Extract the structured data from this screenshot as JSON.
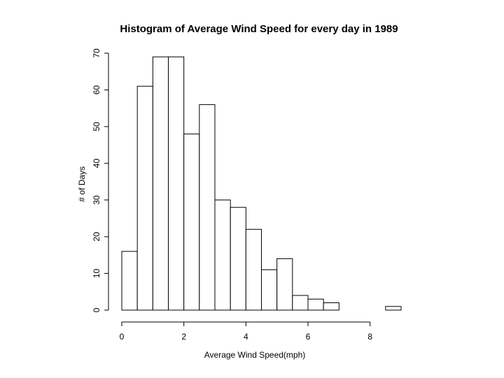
{
  "chart_data": {
    "type": "bar",
    "title": "Histogram of Average Wind Speed for every day in 1989",
    "xlabel": "Average Wind Speed(mph)",
    "ylabel": "# of Days",
    "bin_edges": [
      0,
      0.5,
      1,
      1.5,
      2,
      2.5,
      3,
      3.5,
      4,
      4.5,
      5,
      5.5,
      6,
      6.5,
      7,
      7.5,
      8,
      8.5,
      9
    ],
    "values": [
      16,
      61,
      69,
      69,
      48,
      56,
      30,
      28,
      22,
      11,
      14,
      4,
      3,
      2,
      0,
      0,
      0,
      1
    ],
    "x_ticks": [
      "0",
      "2",
      "4",
      "6",
      "8"
    ],
    "y_ticks": [
      "0",
      "10",
      "20",
      "30",
      "40",
      "50",
      "60",
      "70"
    ],
    "xlim": [
      0,
      9
    ],
    "ylim": [
      0,
      70
    ],
    "grid": false,
    "legend": "none"
  }
}
